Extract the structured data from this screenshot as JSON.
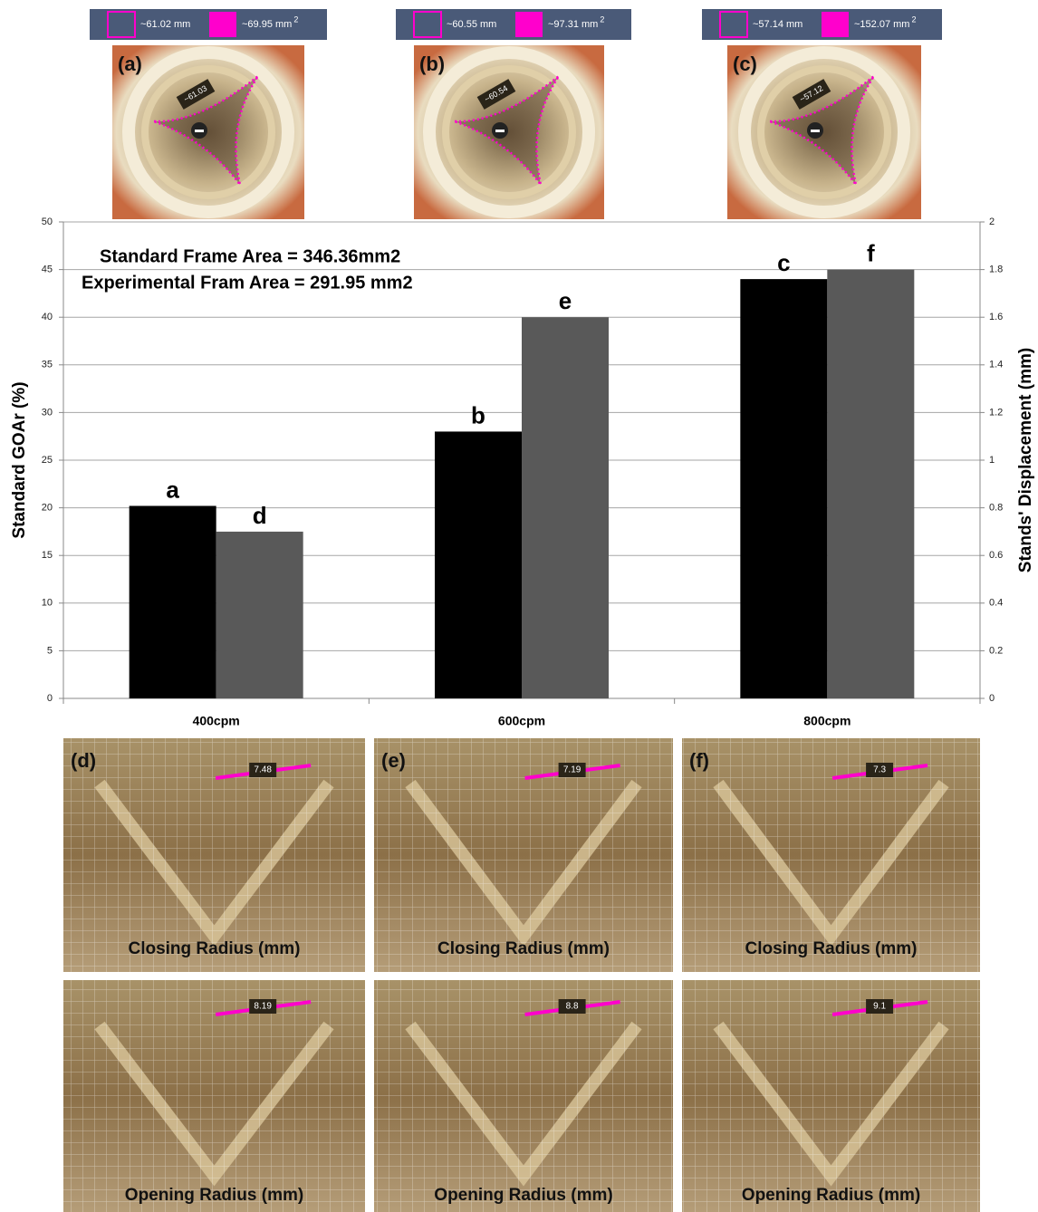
{
  "chart_data": {
    "type": "bar",
    "annotations": [
      "Standard Frame Area = 346.36mm2",
      "Experimental Fram Area = 291.95 mm2"
    ],
    "ylabel": "Standard GOAr (%)",
    "y2label": "Stands' Displacement (mm)",
    "categories": [
      "400cpm",
      "600cpm",
      "800cpm"
    ],
    "series": [
      {
        "color": "#000000",
        "values": [
          20.2,
          28,
          44
        ],
        "labels": [
          "a",
          "b",
          "c"
        ]
      },
      {
        "color": "#595959",
        "axis": "y2",
        "values": [
          0.7,
          1.6,
          1.8
        ],
        "labels": [
          "d",
          "e",
          "f"
        ]
      }
    ],
    "ylim": [
      0,
      50
    ],
    "yticks": [
      0,
      5,
      10,
      15,
      20,
      25,
      30,
      35,
      40,
      45,
      50
    ],
    "y2lim": [
      0,
      2
    ],
    "y2ticks": [
      0,
      0.2,
      0.4,
      0.6,
      0.8,
      1,
      1.2,
      1.4,
      1.6,
      1.8,
      2
    ],
    "grid": true
  },
  "top_panels": [
    {
      "label": "(a)",
      "perimeter": "~61.02 mm",
      "area": "~69.95 mm",
      "area_exp": "2",
      "measure": "~61.03"
    },
    {
      "label": "(b)",
      "perimeter": "~60.55 mm",
      "area": "~97.31 mm",
      "area_exp": "2",
      "measure": "~60.54"
    },
    {
      "label": "(c)",
      "perimeter": "~57.14 mm",
      "area": "~152.07 mm",
      "area_exp": "2",
      "measure": "~57.12"
    }
  ],
  "bottom_panels": [
    {
      "label": "(d)",
      "closing": {
        "caption": "Closing Radius (mm)",
        "measure": "7.48"
      },
      "opening": {
        "caption": "Opening Radius (mm)",
        "measure": "8.19"
      }
    },
    {
      "label": "(e)",
      "closing": {
        "caption": "Closing Radius (mm)",
        "measure": "7.19"
      },
      "opening": {
        "caption": "Opening Radius (mm)",
        "measure": "8.8"
      }
    },
    {
      "label": "(f)",
      "closing": {
        "caption": "Closing Radius (mm)",
        "measure": "7.3"
      },
      "opening": {
        "caption": "Opening Radius (mm)",
        "measure": "9.1"
      }
    }
  ]
}
